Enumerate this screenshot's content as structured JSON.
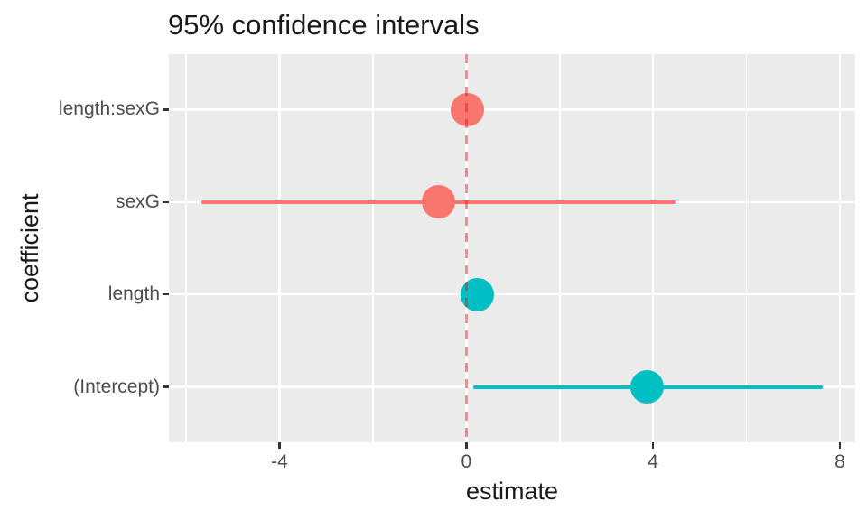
{
  "chart_data": {
    "type": "scatter",
    "subtype": "coefficient-plot-pointrange",
    "title": "95% confidence intervals",
    "xlabel": "estimate",
    "ylabel": "coefficient",
    "xlim": [
      -6.37,
      8.33
    ],
    "x_major_ticks": [
      -4,
      0,
      4,
      8
    ],
    "x_tick_labels": [
      "-4",
      "0",
      "4",
      "8"
    ],
    "x_minor_gridlines": [
      -6,
      -2,
      2,
      6
    ],
    "categories_top_to_bottom": [
      "length:sexG",
      "sexG",
      "length",
      "(Intercept)"
    ],
    "series": [
      {
        "coefficient": "length:sexG",
        "estimate": 0.03,
        "conf_low": -0.12,
        "conf_high": 0.18,
        "color": "#F8766D",
        "ci_hidden_behind_point": true
      },
      {
        "coefficient": "sexG",
        "estimate": -0.6,
        "conf_low": -5.68,
        "conf_high": 4.48,
        "color": "#F8766D",
        "ci_hidden_behind_point": false
      },
      {
        "coefficient": "length",
        "estimate": 0.24,
        "conf_low": 0.08,
        "conf_high": 0.4,
        "color": "#00BFC4",
        "ci_hidden_behind_point": true
      },
      {
        "coefficient": "(Intercept)",
        "estimate": 3.87,
        "conf_low": 0.14,
        "conf_high": 7.63,
        "color": "#00BFC4",
        "ci_hidden_behind_point": false
      }
    ],
    "reference_line": {
      "x": 0,
      "linetype": "dashed",
      "color": "#FF0000",
      "alpha": 0.5
    },
    "legend_position": "none",
    "grid": "on",
    "style": {
      "panel_background": "#EBEBEB",
      "gridline_color": "#FFFFFF",
      "tick_label_color": "#4D4D4D",
      "axis_title_color": "#1A1A1A",
      "title_color": "#1A1A1A",
      "tick_mark_color": "#333333",
      "point_color_red": "#F8766D",
      "point_color_teal": "#00BFC4"
    }
  }
}
